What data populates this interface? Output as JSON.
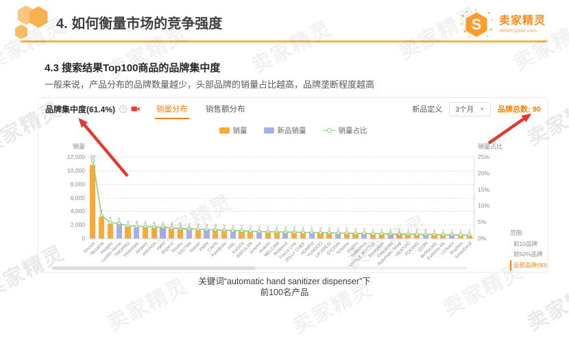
{
  "header": {
    "title": "4. 如何衡量市场的竞争强度",
    "logo_cn": "卖家精灵",
    "logo_en": "SellerSprite.com",
    "logo_letter": "S"
  },
  "section": {
    "number": "4.3",
    "heading": "搜索结果Top100商品的品牌集中度",
    "description": "一般来说，产品分布的品牌数量越少，头部品牌的销量占比越高，品牌垄断程度越高"
  },
  "panel": {
    "title": "品牌集中度(61.4%)",
    "tabs": [
      {
        "label": "销量分布",
        "active": true
      },
      {
        "label": "销售额分布",
        "active": false
      }
    ],
    "new_product_label": "新品定义",
    "new_product_value": "3个月",
    "brand_total": "品牌总数: 90",
    "range": {
      "title": "范围:",
      "options": [
        "前10品牌",
        "前50%品牌",
        "全部品牌(90)"
      ],
      "selected": "全部品牌(90)"
    }
  },
  "chart_data": {
    "type": "bar",
    "title": "品牌集中度(61.4%) 销量分布",
    "xlabel": "",
    "ylabel_left": "销量",
    "ylabel_right": "销量占比",
    "ylim_left": [
      0,
      12000
    ],
    "ylim_right": [
      0,
      25
    ],
    "yticks_left": [
      "12,000",
      "10,000",
      "8,000",
      "6,000",
      "4,000",
      "2,000",
      "0"
    ],
    "yticks_right": [
      "25%",
      "20%",
      "15%",
      "10%",
      "5%",
      "0%"
    ],
    "grid": "dashed-horizontal",
    "legend_position": "top-center",
    "legend": [
      {
        "name": "销量",
        "color": "#fbab35"
      },
      {
        "name": "新品销量",
        "color": "#a8aee8"
      },
      {
        "name": "销量占比",
        "color": "#8fce72"
      }
    ],
    "colors": {
      "bar": "#fbab35",
      "new_bar": "#a8aee8",
      "line": "#8fce72"
    },
    "categories": [
      "Secura",
      "Nozama",
      "mixigoo",
      "Luxton Home",
      "TROPRO",
      "Innosinpo",
      "Aeakey",
      "ANVASK",
      "HAYI",
      "Boperzi",
      "Tesoky",
      "IOUTAN",
      "Naiver",
      "KMIN",
      "CAVN",
      "FamBrow",
      "HSL",
      "KoGi24",
      "BAFULAN",
      "wuwive",
      "Araktin",
      "MELCAM",
      "Relaxoul",
      "Focus Line",
      "JOLLY CHEF",
      "HOMPO",
      "YUNDOO",
      "UP ARESI",
      "SYOSIN",
      "Yohome",
      "Viajero",
      "YuMumus",
      "BOTTLE BOTTLE",
      "Bruvoalon",
      "Coquimbo",
      "Automatic Soap",
      "HEATOO",
      "FOOING",
      "IZORI",
      "BeMyLady",
      "Extreme life",
      "i-Choice",
      "Ruyilam",
      "SmartDevil"
    ],
    "series": [
      {
        "name": "销量",
        "type": "bar",
        "values": [
          10800,
          3150,
          2160,
          2070,
          1710,
          1665,
          1620,
          1575,
          1530,
          1440,
          1350,
          1305,
          1260,
          1215,
          1170,
          1125,
          1080,
          1035,
          990,
          945,
          900,
          900,
          855,
          855,
          810,
          810,
          765,
          765,
          720,
          720,
          675,
          675,
          630,
          630,
          585,
          585,
          585,
          540,
          540,
          540,
          495,
          495,
          450,
          450
        ],
        "new_flags": [
          0,
          0,
          0,
          1,
          0,
          1,
          0,
          0,
          1,
          0,
          0,
          1,
          0,
          1,
          0,
          0,
          1,
          0,
          0,
          1,
          0,
          0,
          1,
          0,
          0,
          1,
          0,
          0,
          1,
          0,
          0,
          1,
          0,
          0,
          1,
          0,
          0,
          0,
          1,
          0,
          0,
          1,
          0,
          0
        ]
      },
      {
        "name": "销量占比",
        "type": "line",
        "axis": "right",
        "values": [
          24,
          7,
          4.8,
          4.6,
          3.8,
          3.7,
          3.6,
          3.5,
          3.4,
          3.2,
          3,
          2.9,
          2.8,
          2.7,
          2.6,
          2.5,
          2.4,
          2.3,
          2.2,
          2.1,
          2,
          2,
          1.9,
          1.9,
          1.8,
          1.8,
          1.7,
          1.7,
          1.6,
          1.6,
          1.5,
          1.5,
          1.4,
          1.4,
          1.3,
          1.3,
          1.3,
          1.2,
          1.2,
          1.2,
          1.1,
          1.1,
          1,
          1
        ],
        "labels": [
          "24",
          "7",
          "5",
          "5",
          "4",
          "4",
          "4",
          "4",
          "3",
          "3",
          "3",
          "3",
          "3",
          "3",
          "3",
          "3",
          "2",
          "2",
          "2",
          "2",
          "2",
          "2",
          "2",
          "2",
          "2",
          "2",
          "2",
          "2",
          "2",
          "2",
          "2",
          "2",
          "1",
          "1",
          "1",
          "1",
          "1",
          "1",
          "1",
          "1",
          "1",
          "1",
          "1",
          "1"
        ]
      }
    ]
  },
  "caption": {
    "line1": "关键词“automatic hand sanitizer dispenser”下",
    "line2": "前100名产品"
  },
  "watermark": "卖家精灵"
}
